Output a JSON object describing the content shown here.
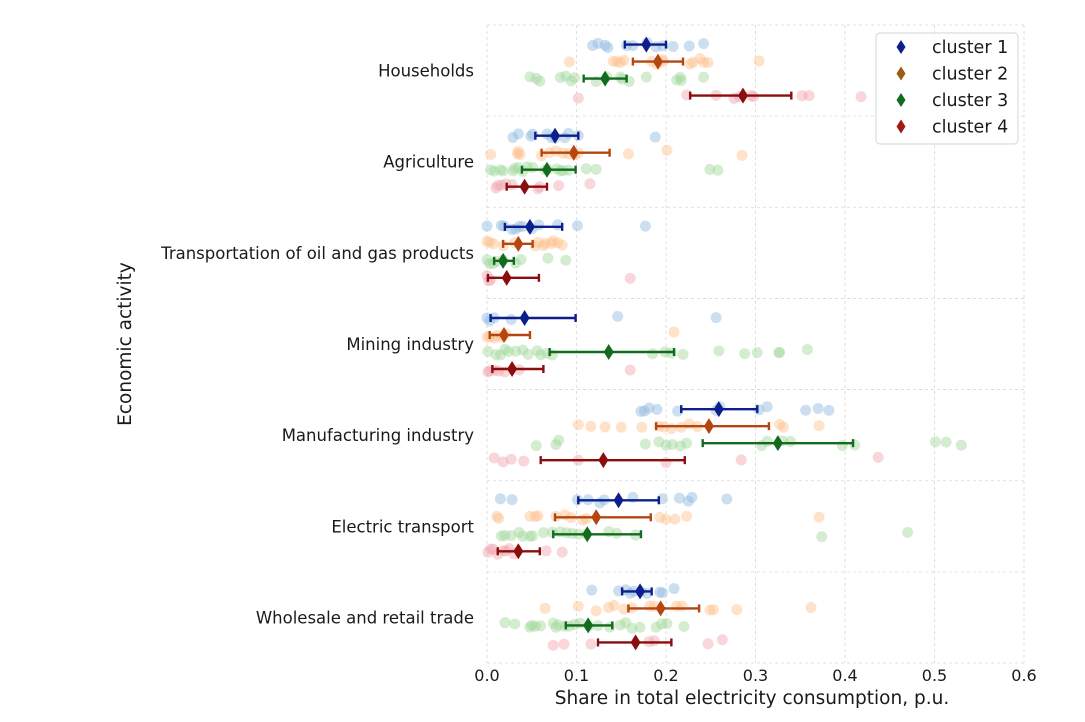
{
  "chart_data": {
    "type": "scatter",
    "orientation": "horizontal",
    "title": "",
    "xlabel": "Share in total electricity consumption, p.u.",
    "ylabel": "Economic activity",
    "xlim": [
      0.0,
      0.6
    ],
    "xticks": [
      "0.0",
      "0.1",
      "0.2",
      "0.3",
      "0.4",
      "0.5",
      "0.6"
    ],
    "grid": true,
    "legend_position": "top-right",
    "categories": [
      "Households",
      "Agriculture",
      "Transportation of oil and gas products",
      "Mining industry",
      "Manufacturing industry",
      "Electric transport",
      "Wholesale and retail trade"
    ],
    "series": [
      {
        "name": "cluster 1",
        "mean_color": "#0c1f8c",
        "point_color": "#8db8e0",
        "means": [
          0.178,
          0.076,
          0.048,
          0.042,
          0.259,
          0.147,
          0.171
        ],
        "error_low": [
          0.154,
          0.054,
          0.02,
          0.004,
          0.217,
          0.102,
          0.151
        ],
        "error_high": [
          0.2,
          0.102,
          0.084,
          0.099,
          0.302,
          0.192,
          0.184
        ],
        "points": [
          [
            0.118,
            0.124,
            0.132,
            0.135,
            0.156,
            0.163,
            0.179,
            0.189,
            0.196,
            0.208,
            0.226,
            0.242
          ],
          [
            0.029,
            0.035,
            0.049,
            0.051,
            0.067,
            0.072,
            0.076,
            0.087,
            0.091,
            0.102,
            0.188
          ],
          [
            0.0,
            0.016,
            0.019,
            0.028,
            0.032,
            0.036,
            0.04,
            0.05,
            0.058,
            0.079,
            0.101,
            0.177
          ],
          [
            0.0,
            0.003,
            0.008,
            0.027,
            0.146,
            0.256
          ],
          [
            0.172,
            0.176,
            0.181,
            0.19,
            0.213,
            0.256,
            0.26,
            0.304,
            0.313,
            0.356,
            0.37,
            0.382
          ],
          [
            0.015,
            0.028,
            0.101,
            0.113,
            0.126,
            0.131,
            0.163,
            0.196,
            0.215,
            0.225,
            0.229,
            0.268
          ],
          [
            0.117,
            0.147,
            0.155,
            0.16,
            0.164,
            0.172,
            0.179,
            0.193,
            0.196,
            0.209
          ]
        ]
      },
      {
        "name": "cluster 2",
        "mean_color": "#b5460f",
        "point_color": "#fdbf8a",
        "legend_color": "#9c5a14",
        "means": [
          0.191,
          0.097,
          0.035,
          0.019,
          0.248,
          0.122,
          0.194
        ],
        "error_low": [
          0.163,
          0.061,
          0.018,
          0.003,
          0.189,
          0.076,
          0.158
        ],
        "error_high": [
          0.219,
          0.137,
          0.051,
          0.048,
          0.315,
          0.183,
          0.237
        ],
        "points": [
          [
            0.092,
            0.141,
            0.145,
            0.149,
            0.153,
            0.184,
            0.19,
            0.196,
            0.197,
            0.227,
            0.23,
            0.238,
            0.242,
            0.247,
            0.304
          ],
          [
            0.004,
            0.034,
            0.035,
            0.037,
            0.061,
            0.07,
            0.077,
            0.085,
            0.091,
            0.098,
            0.102,
            0.158,
            0.201,
            0.285
          ],
          [
            0.0,
            0.003,
            0.007,
            0.018,
            0.031,
            0.054,
            0.057,
            0.063,
            0.065,
            0.072,
            0.074,
            0.079,
            0.084
          ],
          [
            0.0,
            0.003,
            0.008,
            0.011,
            0.017,
            0.021,
            0.209
          ],
          [
            0.102,
            0.116,
            0.132,
            0.15,
            0.173,
            0.192,
            0.198,
            0.206,
            0.217,
            0.226,
            0.235,
            0.327,
            0.331,
            0.371
          ],
          [
            0.011,
            0.013,
            0.048,
            0.054,
            0.057,
            0.077,
            0.087,
            0.094,
            0.107,
            0.111,
            0.193,
            0.2,
            0.21,
            0.223,
            0.371
          ],
          [
            0.065,
            0.102,
            0.122,
            0.136,
            0.142,
            0.153,
            0.162,
            0.182,
            0.187,
            0.212,
            0.218,
            0.249,
            0.253,
            0.279,
            0.362
          ]
        ]
      },
      {
        "name": "cluster 3",
        "mean_color": "#136b1f",
        "point_color": "#9fd79a",
        "means": [
          0.132,
          0.067,
          0.018,
          0.136,
          0.325,
          0.112,
          0.113
        ],
        "error_low": [
          0.108,
          0.039,
          0.008,
          0.07,
          0.241,
          0.074,
          0.088
        ],
        "error_high": [
          0.156,
          0.099,
          0.03,
          0.209,
          0.409,
          0.172,
          0.14
        ],
        "points": [
          [
            0.048,
            0.055,
            0.059,
            0.082,
            0.088,
            0.094,
            0.098,
            0.122,
            0.134,
            0.149,
            0.151,
            0.159,
            0.178,
            0.212,
            0.216,
            0.217,
            0.242
          ],
          [
            0.004,
            0.008,
            0.015,
            0.018,
            0.029,
            0.031,
            0.035,
            0.04,
            0.045,
            0.051,
            0.065,
            0.068,
            0.078,
            0.082,
            0.085,
            0.091,
            0.111,
            0.122,
            0.249,
            0.258
          ],
          [
            0.0,
            0.003,
            0.007,
            0.01,
            0.018,
            0.032,
            0.038,
            0.068,
            0.088
          ],
          [
            0.001,
            0.01,
            0.015,
            0.02,
            0.024,
            0.032,
            0.04,
            0.046,
            0.056,
            0.06,
            0.067,
            0.073,
            0.185,
            0.199,
            0.206,
            0.219,
            0.259,
            0.288,
            0.302,
            0.326,
            0.327,
            0.358
          ],
          [
            0.055,
            0.077,
            0.08,
            0.177,
            0.192,
            0.2,
            0.207,
            0.216,
            0.223,
            0.307,
            0.313,
            0.33,
            0.339,
            0.397,
            0.411,
            0.501,
            0.513,
            0.53
          ],
          [
            0.016,
            0.02,
            0.027,
            0.036,
            0.04,
            0.048,
            0.051,
            0.063,
            0.073,
            0.082,
            0.089,
            0.095,
            0.102,
            0.111,
            0.136,
            0.145,
            0.166,
            0.374,
            0.47
          ],
          [
            0.02,
            0.031,
            0.048,
            0.05,
            0.054,
            0.06,
            0.074,
            0.077,
            0.08,
            0.087,
            0.092,
            0.098,
            0.104,
            0.114,
            0.124,
            0.137,
            0.149,
            0.155,
            0.162,
            0.171,
            0.189,
            0.195,
            0.201,
            0.22
          ]
        ]
      },
      {
        "name": "cluster 4",
        "mean_color": "#8b0d0d",
        "point_color": "#f0a5ad",
        "legend_color": "#a01818",
        "means": [
          0.286,
          0.042,
          0.022,
          0.028,
          0.13,
          0.035,
          0.166
        ],
        "error_low": [
          0.227,
          0.022,
          0.001,
          0.006,
          0.06,
          0.012,
          0.124
        ],
        "error_high": [
          0.34,
          0.067,
          0.058,
          0.063,
          0.221,
          0.059,
          0.206
        ],
        "points": [
          [
            0.102,
            0.223,
            0.256,
            0.276,
            0.282,
            0.295,
            0.298,
            0.352,
            0.36,
            0.418
          ],
          [
            0.01,
            0.012,
            0.016,
            0.021,
            0.028,
            0.057,
            0.059,
            0.08,
            0.115
          ],
          [
            0.0,
            0.002,
            0.004,
            0.16
          ],
          [
            0.001,
            0.003,
            0.008,
            0.013,
            0.02,
            0.036,
            0.16
          ],
          [
            0.008,
            0.018,
            0.027,
            0.041,
            0.102,
            0.2,
            0.284,
            0.437
          ],
          [
            0.001,
            0.004,
            0.007,
            0.012,
            0.018,
            0.021,
            0.025,
            0.03,
            0.066,
            0.084
          ],
          [
            0.074,
            0.086,
            0.116,
            0.181,
            0.187,
            0.247,
            0.263
          ]
        ]
      }
    ]
  }
}
